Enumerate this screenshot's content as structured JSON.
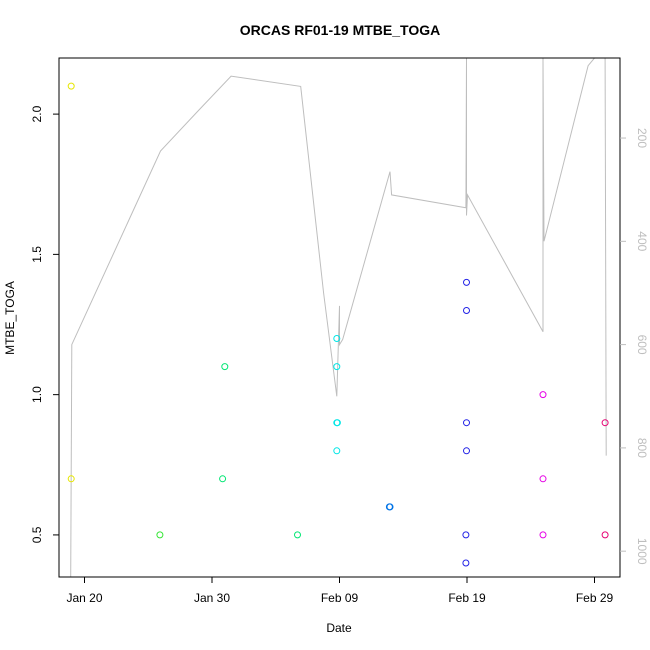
{
  "chart_data": {
    "type": "scatter",
    "title": "ORCAS RF01-19 MTBE_TOGA",
    "xlabel": "Date",
    "ylabel": "MTBE_TOGA",
    "x_ticks": [
      {
        "date": "2016-01-20",
        "label": "Jan 20"
      },
      {
        "date": "2016-01-30",
        "label": "Jan 30"
      },
      {
        "date": "2016-02-09",
        "label": "Feb 09"
      },
      {
        "date": "2016-02-19",
        "label": "Feb 19"
      },
      {
        "date": "2016-02-29",
        "label": "Feb 29"
      }
    ],
    "xlim": [
      "2016-01-18",
      "2016-03-02"
    ],
    "ylim": [
      0.35,
      2.2
    ],
    "y_ticks": [
      0.5,
      1.0,
      1.5,
      2.0
    ],
    "y_tick_labels": [
      "0.5",
      "1.0",
      "1.5",
      "2.0"
    ],
    "y2_ticks": [
      200,
      400,
      600,
      800,
      1000
    ],
    "y2_tick_labels": [
      "200",
      "400",
      "600",
      "800",
      "1000"
    ],
    "y2_range_at_ylim": [
      1050,
      45
    ],
    "y2_inverted": true,
    "grid": false,
    "series": [
      {
        "color": "#e6e600",
        "points": [
          [
            "2016-01-18T23:00",
            2.1
          ],
          [
            "2016-01-18T23:00",
            0.7
          ]
        ]
      },
      {
        "color": "#33e633",
        "points": [
          [
            "2016-01-25T22:00",
            0.5
          ]
        ]
      },
      {
        "color": "#00e673",
        "points": [
          [
            "2016-01-31T00:00",
            1.1
          ],
          [
            "2016-01-30T20:00",
            0.7
          ],
          [
            "2016-02-05T17:00",
            0.5
          ]
        ]
      },
      {
        "color": "#00e6e6",
        "points": [
          [
            "2016-02-08T19:00",
            1.2
          ],
          [
            "2016-02-08T19:00",
            1.1
          ],
          [
            "2016-02-08T19:00",
            0.9
          ],
          [
            "2016-02-08T20:00",
            0.9
          ],
          [
            "2016-02-08T19:00",
            0.8
          ]
        ]
      },
      {
        "color": "#0073e6",
        "points": [
          [
            "2016-02-12T22:00",
            0.6
          ],
          [
            "2016-02-12T23:00",
            0.6
          ]
        ]
      },
      {
        "color": "#2222e6",
        "points": [
          [
            "2016-02-18T23:00",
            1.4
          ],
          [
            "2016-02-18T23:00",
            1.3
          ],
          [
            "2016-02-18T23:00",
            0.9
          ],
          [
            "2016-02-18T23:00",
            0.8
          ],
          [
            "2016-02-18T22:00",
            0.5
          ],
          [
            "2016-02-18T22:00",
            0.4
          ]
        ]
      },
      {
        "color": "#e600e6",
        "points": [
          [
            "2016-02-24T23:00",
            1.0
          ],
          [
            "2016-02-24T23:00",
            0.7
          ],
          [
            "2016-02-24T23:00",
            0.5
          ]
        ]
      },
      {
        "color": "#e60073",
        "points": [
          [
            "2016-02-29T20:00",
            0.9
          ],
          [
            "2016-02-29T20:00",
            0.5
          ]
        ]
      }
    ],
    "line_series": {
      "color": "#bebebe",
      "axis": "right",
      "points": [
        [
          "2016-01-18T22:00",
          1050
        ],
        [
          "2016-01-19T00:00",
          600
        ],
        [
          "2016-01-25T23:00",
          225
        ],
        [
          "2016-01-29T00:00",
          145
        ],
        [
          "2016-01-31T12:00",
          80
        ],
        [
          "2016-02-05T23:00",
          100
        ],
        [
          "2016-02-07T18:00",
          500
        ],
        [
          "2016-02-08T19:00",
          700
        ],
        [
          "2016-02-09T00:00",
          525
        ],
        [
          "2016-02-09T00:00",
          600
        ],
        [
          "2016-02-09T06:00",
          590
        ],
        [
          "2016-02-12T23:00",
          265
        ],
        [
          "2016-02-13T02:00",
          310
        ],
        [
          "2016-02-18T22:00",
          335
        ],
        [
          "2016-02-18T23:00",
          45
        ],
        [
          "2016-02-18T23:00",
          350
        ],
        [
          "2016-02-19T01:00",
          310
        ],
        [
          "2016-02-24T23:00",
          575
        ],
        [
          "2016-02-24T23:00",
          45
        ],
        [
          "2016-02-25T01:00",
          400
        ],
        [
          "2016-02-28T12:00",
          60
        ],
        [
          "2016-02-29T00:00",
          45
        ],
        [
          "2016-02-29T20:00",
          45
        ],
        [
          "2016-02-29T22:00",
          815
        ]
      ]
    }
  }
}
